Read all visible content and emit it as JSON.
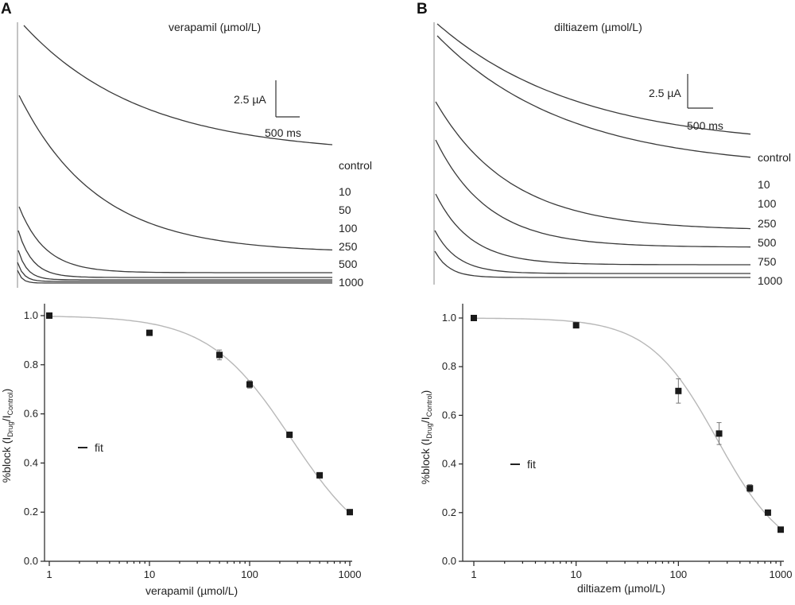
{
  "panels": [
    {
      "letter": "A",
      "traces": {
        "title": "verapamil (µmol/L)",
        "scale": {
          "current": "2.5 µA",
          "time": "500 ms"
        },
        "labels": [
          "control",
          "10",
          "50",
          "100",
          "250",
          "500",
          "1000"
        ]
      },
      "xlabel": "verapamil (µmol/L)",
      "ylabel": "%block (I",
      "ylabel_sub1": "Drug",
      "ylabel_mid": "/I",
      "ylabel_sub2": "Control",
      "ylabel_end": ")",
      "legend_label": "fit",
      "x_ticks": [
        "1",
        "10",
        "100",
        "1000"
      ],
      "y_ticks": [
        "0.0",
        "0.2",
        "0.4",
        "0.6",
        "0.8",
        "1.0"
      ]
    },
    {
      "letter": "B",
      "traces": {
        "title": "diltiazem (µmol/L)",
        "scale": {
          "current": "2.5 µA",
          "time": "500 ms"
        },
        "labels": [
          "control",
          "10",
          "100",
          "250",
          "500",
          "750",
          "1000"
        ]
      },
      "xlabel": "diltiazem (µmol/L)",
      "ylabel": "%block (I",
      "ylabel_sub1": "Drug",
      "ylabel_mid": "/I",
      "ylabel_sub2": "Control",
      "ylabel_end": ")",
      "legend_label": "fit",
      "x_ticks": [
        "1",
        "10",
        "100",
        "1000"
      ],
      "y_ticks": [
        "0.0",
        "0.2",
        "0.4",
        "0.6",
        "0.8",
        "1.0"
      ]
    }
  ],
  "chart_data": [
    {
      "type": "scatter",
      "panel": "A",
      "xscale": "log",
      "xlim": [
        1,
        1000
      ],
      "ylim": [
        0,
        1.05
      ],
      "x": [
        1,
        10,
        50,
        100,
        250,
        500,
        1000
      ],
      "y": [
        1.0,
        0.93,
        0.84,
        0.72,
        0.515,
        0.35,
        0.2
      ],
      "err": [
        0,
        0,
        0.02,
        0.015,
        0.005,
        0.005,
        0.01
      ],
      "fit": {
        "ic50": 260,
        "hill": 1.05
      }
    },
    {
      "type": "scatter",
      "panel": "B",
      "xscale": "log",
      "xlim": [
        1,
        1000
      ],
      "ylim": [
        0,
        1.05
      ],
      "x": [
        1,
        10,
        100,
        250,
        500,
        750,
        1000
      ],
      "y": [
        1.0,
        0.97,
        0.7,
        0.525,
        0.3,
        0.2,
        0.13
      ],
      "err": [
        0,
        0,
        0.05,
        0.045,
        0.015,
        0.005,
        0.0
      ],
      "fit": {
        "ic50": 240,
        "hill": 1.3
      }
    }
  ]
}
